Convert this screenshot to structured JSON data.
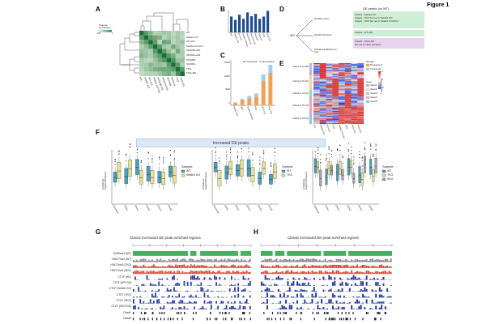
{
  "figure": {
    "title": "Figure 1",
    "panels": [
      "A",
      "B",
      "C",
      "D",
      "E",
      "F",
      "G",
      "H"
    ]
  },
  "panel_a": {
    "samples": [
      "WT",
      "Setdb1 KO",
      "WT+DS",
      "Setdb1 KO+DS",
      "SKO#65+DS",
      "SKO#14+DS",
      "SKO#65",
      "SKO#14",
      "TKO",
      "TKO+DS"
    ],
    "colorbar_label": "Pearson\nCorrelation",
    "colorbar_ticks": [
      "1",
      "0.9",
      "0.8"
    ]
  },
  "panel_b": {
    "chart_data": {
      "type": "bar",
      "categories": [
        "WT",
        "Setdb1 KO",
        "WT+DS",
        "Setdb1 KO+DS",
        "SKO#65+DS",
        "SKO#14+DS",
        "SKO#65",
        "SKO#14",
        "TKO",
        "TKO+DS"
      ],
      "values": [
        70,
        55,
        78,
        60,
        88,
        72,
        82,
        60,
        70,
        95
      ],
      "ylim": [
        0,
        100
      ]
    }
  },
  "panel_c": {
    "legend_increased": "Increased",
    "legend_decreased": "Decreased",
    "chart_data": {
      "type": "bar",
      "categories": [
        "Setdb1 KO",
        "SKO",
        "Setdb1 KO+DS",
        "TKO",
        "SKO+DS",
        "TKO+DS"
      ],
      "series": [
        {
          "name": "Increased",
          "values": [
            800,
            1800,
            2600,
            3200,
            9000,
            12000
          ]
        },
        {
          "name": "Decreased",
          "values": [
            300,
            600,
            900,
            1200,
            2500,
            3000
          ]
        }
      ],
      "ylim": [
        0,
        15000
      ],
      "y_ticks": [
        "15000",
        "10000",
        "5000",
        "0"
      ]
    }
  },
  "panel_d": {
    "header": "DE peaks (vs WT)",
    "root": "WT",
    "branches": [
      "H3K9me loss",
      "H3K27me3 loss",
      "H3K9me/H3K27me3\nloss"
    ],
    "classes": [
      {
        "text": "Class1 : Setdb1 KO\nClass2 : TKO but not in Setdb1 KO\nClass3 : SKO but not in Setdb1 KO/TKO",
        "color": "#cfeed6"
      },
      {
        "text": "Class4 : WT+DS",
        "color": "#cfeed6"
      },
      {
        "text": "Class5 : SKO+DS\nbut not in other samples",
        "color": "#e8d3ef"
      }
    ]
  },
  "panel_e": {
    "row_labels": [
      "Class1 (n=2,098)",
      "Class2 (n=4,311)",
      "Class3 (n=1,041)",
      "Class4 (n=5,176)",
      "Class5 (n=2,873)"
    ],
    "columns": [
      "WT",
      "Setdb1 KO",
      "WT+DS",
      "TKO",
      "Setdb1 KO+DS",
      "SKO",
      "SKO+DS",
      "TKO+DS"
    ],
    "legend_change_title": "change",
    "legend_change": [
      "Decreased",
      "Increased"
    ],
    "legend_class_title": "class",
    "legend_classes": [
      "class1",
      "class2",
      "class3",
      "class4",
      "class5"
    ],
    "scale_title": "Log2(KO/WT)",
    "scale_ticks": [
      "2",
      "0",
      "-2"
    ]
  },
  "panel_f": {
    "banner": "Increased DE peaks",
    "ylabel": "H3K9me3\nlog2(ChIP/input)",
    "xcats": [
      "Combined",
      "Class1",
      "Class2",
      "Class3",
      "Class4",
      "Class5"
    ],
    "legends": [
      {
        "title": "Sample",
        "items": [
          "WT",
          "Setdb1 KO"
        ]
      },
      {
        "title": "Sample",
        "items": [
          "WT",
          "TKO"
        ]
      },
      {
        "title": "Sample",
        "items": [
          "WT",
          "TKO",
          "SKO"
        ]
      }
    ]
  },
  "panel_g": {
    "title": "Class2 Increased DE peak enriched regions",
    "tracks": [
      "H3K9me3 (WT)",
      "H3K27me3 (WT)",
      "H3K27me3 (TKO)",
      "H3K27me3 (SKO)",
      "CTCF (WT)",
      "CTCF (WT+DS)",
      "CTCF (Setdb1 KO)",
      "CTCF (TKO)",
      "CTCF (SKO)",
      "CTCF (SKO+DS)",
      "Class2",
      "Class5"
    ]
  },
  "panel_h": {
    "title": "Class5 Increased DE peak enriched regions"
  },
  "colors": {
    "green": "#2fa84f",
    "red": "#e0443b",
    "blue": "#2b3f9e",
    "orange": "#f0a15a",
    "lightblue": "#9fd0e6",
    "bar": "#1f4e8c"
  }
}
